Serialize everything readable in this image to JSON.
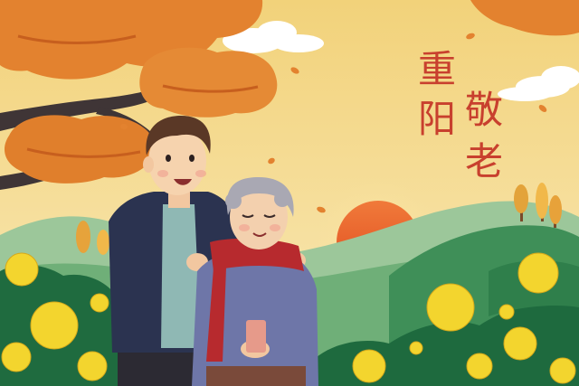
{
  "caption": {
    "col1": [
      "重",
      "阳"
    ],
    "col2": [
      "敬",
      "老"
    ]
  },
  "colors": {
    "sky_top": "#f3d98a",
    "sky_bottom": "#f8e6b0",
    "sun": "#e8582a",
    "foliage": "#e3822f",
    "foliage_dark": "#c75f1e",
    "hill_far": "#8fbf8e",
    "hill_near": "#4f9a64",
    "bush": "#1f6b3f",
    "flower": "#f3d52e",
    "scarf": "#b72a2e",
    "text": "#c8402e"
  },
  "icons": [
    "tree-canopy-icon",
    "sun-icon",
    "cloud-icon",
    "chrysanthemum-icon"
  ]
}
